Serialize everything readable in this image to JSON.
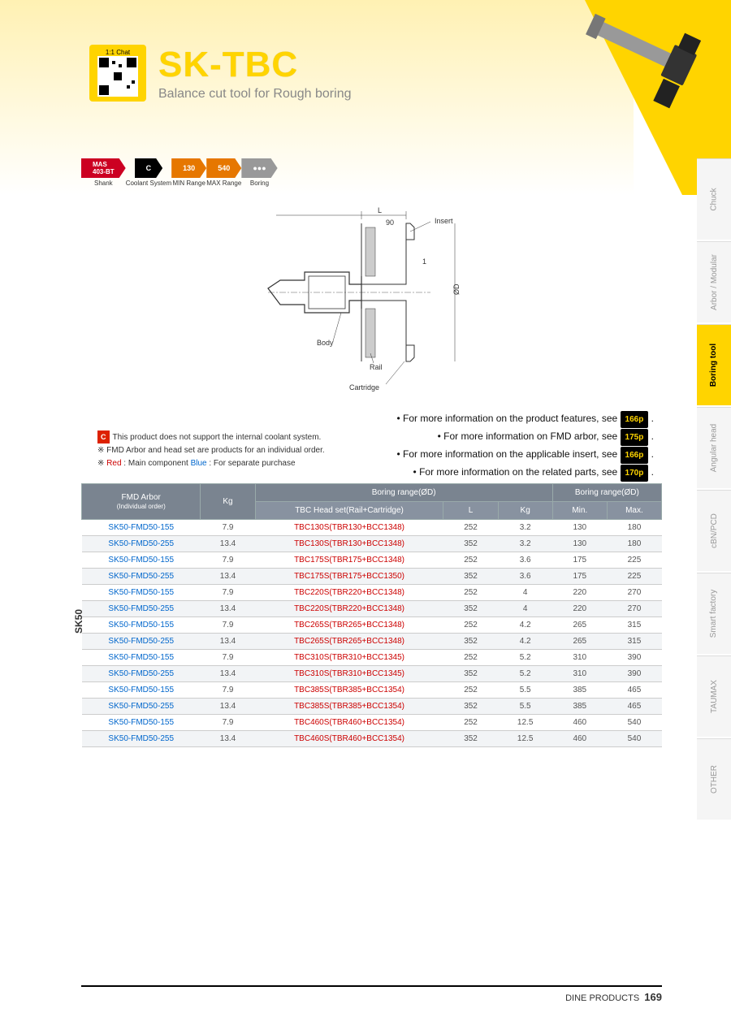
{
  "header": {
    "qr_label": "1:1 Chat",
    "title": "SK-TBC",
    "subtitle": "Balance cut tool for Rough boring"
  },
  "specs": [
    {
      "value": "MAS\n403-BT",
      "label": "Shank",
      "bg": "#cc0022"
    },
    {
      "value": "C",
      "label": "Coolant System",
      "bg": "#000000"
    },
    {
      "value": "130",
      "label": "MIN Range",
      "bg": "#e67700"
    },
    {
      "value": "540",
      "label": "MAX Range",
      "bg": "#e67700"
    },
    {
      "value": "●●●",
      "label": "Boring",
      "bg": "#999999"
    }
  ],
  "diagram_labels": {
    "L": "L",
    "ninety": "90",
    "insert": "Insert",
    "one": "1",
    "od": "ØD",
    "body": "Body",
    "rail": "Rail",
    "cartridge": "Cartridge"
  },
  "notes_left": {
    "c_badge": "C",
    "line1": "This product does not support the internal coolant system.",
    "line2": "※ FMD Arbor and head set are products for an individual order.",
    "line3_prefix": "※ ",
    "line3_red": "Red",
    "line3_mid": " : Main component   ",
    "line3_blue": "Blue",
    "line3_end": " : For separate purchase"
  },
  "notes_right": [
    {
      "text": "• For more information on the product features, see ",
      "page": "166p"
    },
    {
      "text": "• For more information on FMD arbor, see ",
      "page": "175p"
    },
    {
      "text": "• For more information on the applicable insert, see ",
      "page": "166p"
    },
    {
      "text": "• For more information on the related parts, see ",
      "page": "170p"
    }
  ],
  "table": {
    "side_label": "SK50",
    "h_arbor": "FMD Arbor",
    "h_arbor_sub": "(Individual order)",
    "h_kg1": "Kg",
    "h_range": "Boring range(ØD)",
    "h_range2": "Boring range(ØD)",
    "h_head": "TBC Head set(Rail+Cartridge)",
    "h_L": "L",
    "h_kg2": "Kg",
    "h_min": "Min.",
    "h_max": "Max.",
    "rows": [
      [
        "SK50-FMD50-155",
        "7.9",
        "TBC130S(TBR130+BCC1348)",
        "252",
        "3.2",
        "130",
        "180"
      ],
      [
        "SK50-FMD50-255",
        "13.4",
        "TBC130S(TBR130+BCC1348)",
        "352",
        "3.2",
        "130",
        "180"
      ],
      [
        "SK50-FMD50-155",
        "7.9",
        "TBC175S(TBR175+BCC1348)",
        "252",
        "3.6",
        "175",
        "225"
      ],
      [
        "SK50-FMD50-255",
        "13.4",
        "TBC175S(TBR175+BCC1350)",
        "352",
        "3.6",
        "175",
        "225"
      ],
      [
        "SK50-FMD50-155",
        "7.9",
        "TBC220S(TBR220+BCC1348)",
        "252",
        "4",
        "220",
        "270"
      ],
      [
        "SK50-FMD50-255",
        "13.4",
        "TBC220S(TBR220+BCC1348)",
        "352",
        "4",
        "220",
        "270"
      ],
      [
        "SK50-FMD50-155",
        "7.9",
        "TBC265S(TBR265+BCC1348)",
        "252",
        "4.2",
        "265",
        "315"
      ],
      [
        "SK50-FMD50-255",
        "13.4",
        "TBC265S(TBR265+BCC1348)",
        "352",
        "4.2",
        "265",
        "315"
      ],
      [
        "SK50-FMD50-155",
        "7.9",
        "TBC310S(TBR310+BCC1345)",
        "252",
        "5.2",
        "310",
        "390"
      ],
      [
        "SK50-FMD50-255",
        "13.4",
        "TBC310S(TBR310+BCC1345)",
        "352",
        "5.2",
        "310",
        "390"
      ],
      [
        "SK50-FMD50-155",
        "7.9",
        "TBC385S(TBR385+BCC1354)",
        "252",
        "5.5",
        "385",
        "465"
      ],
      [
        "SK50-FMD50-255",
        "13.4",
        "TBC385S(TBR385+BCC1354)",
        "352",
        "5.5",
        "385",
        "465"
      ],
      [
        "SK50-FMD50-155",
        "7.9",
        "TBC460S(TBR460+BCC1354)",
        "252",
        "12.5",
        "460",
        "540"
      ],
      [
        "SK50-FMD50-255",
        "13.4",
        "TBC460S(TBR460+BCC1354)",
        "352",
        "12.5",
        "460",
        "540"
      ]
    ]
  },
  "tabs": [
    {
      "label": "Chuck",
      "active": false
    },
    {
      "label": "Arbor / Modular",
      "active": false
    },
    {
      "label": "Boring tool",
      "active": true
    },
    {
      "label": "Angular head",
      "active": false
    },
    {
      "label": "cBN/PCD",
      "active": false
    },
    {
      "label": "Smart factory",
      "active": false
    },
    {
      "label": "TAUMAX",
      "active": false
    },
    {
      "label": "OTHER",
      "active": false
    }
  ],
  "footer": {
    "brand": "DINE PRODUCTS",
    "page": "169"
  }
}
